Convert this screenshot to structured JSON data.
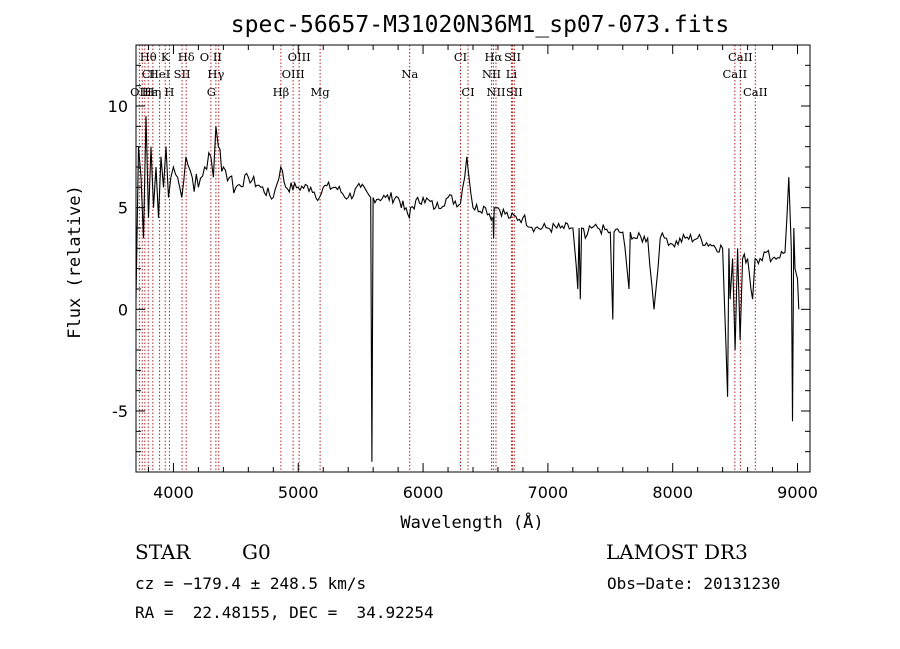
{
  "chart_data": {
    "type": "line",
    "title": "spec-56657-M31020N36M1_sp07-073.fits",
    "xlabel": "Wavelength (Å)",
    "ylabel": "Flux (relative)",
    "xlim": [
      3700,
      9100
    ],
    "ylim": [
      -8,
      13
    ],
    "xticks": [
      4000,
      5000,
      6000,
      7000,
      8000,
      9000
    ],
    "yticks": [
      -5,
      0,
      5,
      10
    ],
    "series": [
      {
        "name": "flux",
        "x": [
          3700,
          3720,
          3740,
          3760,
          3780,
          3800,
          3820,
          3840,
          3860,
          3880,
          3900,
          3920,
          3940,
          3960,
          3980,
          4000,
          4050,
          4100,
          4150,
          4200,
          4250,
          4300,
          4320,
          4340,
          4360,
          4400,
          4450,
          4500,
          4600,
          4700,
          4800,
          4860,
          4900,
          5000,
          5100,
          5170,
          5200,
          5300,
          5400,
          5500,
          5580,
          5590,
          5600,
          5700,
          5800,
          5890,
          5900,
          6000,
          6100,
          6200,
          6300,
          6350,
          6400,
          6500,
          6560,
          6565,
          6570,
          6600,
          6700,
          6800,
          6900,
          7000,
          7100,
          7200,
          7240,
          7250,
          7260,
          7270,
          7300,
          7350,
          7400,
          7500,
          7520,
          7530,
          7600,
          7650,
          7660,
          7700,
          7800,
          7850,
          7900,
          7950,
          8000,
          8100,
          8200,
          8300,
          8400,
          8440,
          8450,
          8460,
          8480,
          8500,
          8520,
          8540,
          8560,
          8600,
          8640,
          8660,
          8700,
          8750,
          8800,
          8900,
          8930,
          8950,
          8960,
          8970,
          8980,
          9000,
          9010
        ],
        "y": [
          0.5,
          8,
          6.5,
          3.5,
          9.5,
          4.5,
          8,
          5,
          7,
          4.5,
          7.5,
          6,
          8,
          5.5,
          6.5,
          7,
          6,
          7.5,
          6.5,
          6,
          7,
          7.5,
          6.5,
          9,
          8,
          7,
          6.5,
          6,
          6.5,
          6,
          5.5,
          7,
          6,
          6,
          6,
          5.5,
          6,
          6,
          5.5,
          6,
          5.5,
          -7.5,
          5.5,
          5.5,
          5.5,
          4.5,
          5,
          5.5,
          5,
          5.5,
          5.2,
          7.5,
          5,
          5,
          4.5,
          3.5,
          5,
          5,
          4.5,
          4.5,
          4,
          4,
          4,
          4,
          1,
          4,
          0.5,
          4,
          3.5,
          4,
          4,
          3.8,
          -0.5,
          3.8,
          3.8,
          1,
          3.8,
          3.5,
          3.5,
          0,
          3.5,
          3.5,
          3.2,
          3.5,
          3.5,
          3.2,
          3,
          -4.3,
          3,
          0.5,
          2.5,
          -2,
          3,
          -1.5,
          2.5,
          2.5,
          0.5,
          2.5,
          2.5,
          2.8,
          2.5,
          2.8,
          6.5,
          3,
          -5.5,
          4,
          2,
          1.5,
          0
        ]
      }
    ],
    "line_labels": [
      {
        "label": "Hθ",
        "wl": 3798,
        "row": 0
      },
      {
        "label": "K",
        "wl": 3934,
        "row": 0
      },
      {
        "label": "Hδ",
        "wl": 4102,
        "row": 0
      },
      {
        "label": "O II",
        "wl": 4300,
        "row": 0
      },
      {
        "label": "OIII",
        "wl": 5007,
        "row": 0
      },
      {
        "label": "CI",
        "wl": 6300,
        "row": 0
      },
      {
        "label": "Hα",
        "wl": 6563,
        "row": 0
      },
      {
        "label": "SII",
        "wl": 6717,
        "row": 0
      },
      {
        "label": "CaII",
        "wl": 8542,
        "row": 0
      },
      {
        "label": "CI",
        "wl": 3800,
        "row": 1
      },
      {
        "label": "HeI",
        "wl": 3889,
        "row": 1
      },
      {
        "label": "SII",
        "wl": 4069,
        "row": 1
      },
      {
        "label": "Hγ",
        "wl": 4340,
        "row": 1
      },
      {
        "label": "OIII",
        "wl": 4959,
        "row": 1
      },
      {
        "label": "Na",
        "wl": 5893,
        "row": 1
      },
      {
        "label": "NII",
        "wl": 6548,
        "row": 1
      },
      {
        "label": "Li",
        "wl": 6708,
        "row": 1
      },
      {
        "label": "CaII",
        "wl": 8498,
        "row": 1
      },
      {
        "label": "OII",
        "wl": 3727,
        "row": 2
      },
      {
        "label": "Hε",
        "wl": 3810,
        "row": 2
      },
      {
        "label": "Hη",
        "wl": 3835,
        "row": 2
      },
      {
        "label": "H",
        "wl": 3968,
        "row": 2
      },
      {
        "label": "G",
        "wl": 4304,
        "row": 2
      },
      {
        "label": "Hβ",
        "wl": 4861,
        "row": 2
      },
      {
        "label": "Mg",
        "wl": 5175,
        "row": 2
      },
      {
        "label": "CI",
        "wl": 6360,
        "row": 2
      },
      {
        "label": "NII",
        "wl": 6584,
        "row": 2
      },
      {
        "label": "SII",
        "wl": 6731,
        "row": 2
      },
      {
        "label": "CaII",
        "wl": 8662,
        "row": 2
      }
    ],
    "line_markers_wl": [
      3727,
      3750,
      3771,
      3798,
      3835,
      3889,
      3934,
      3968,
      4069,
      4102,
      4300,
      4340,
      4363,
      4861,
      4959,
      5007,
      5175,
      5893,
      6300,
      6360,
      6548,
      6563,
      6584,
      6708,
      6717,
      6731,
      8498,
      8542,
      8662
    ]
  },
  "info": {
    "object_class": "STAR",
    "subclass": "G0",
    "survey": "LAMOST DR3",
    "cz": "cz = −179.4 ± 248.5 km/s",
    "obs_date": "Obs−Date: 20131230",
    "coords": "RA =  22.48155, DEC =  34.92254"
  }
}
